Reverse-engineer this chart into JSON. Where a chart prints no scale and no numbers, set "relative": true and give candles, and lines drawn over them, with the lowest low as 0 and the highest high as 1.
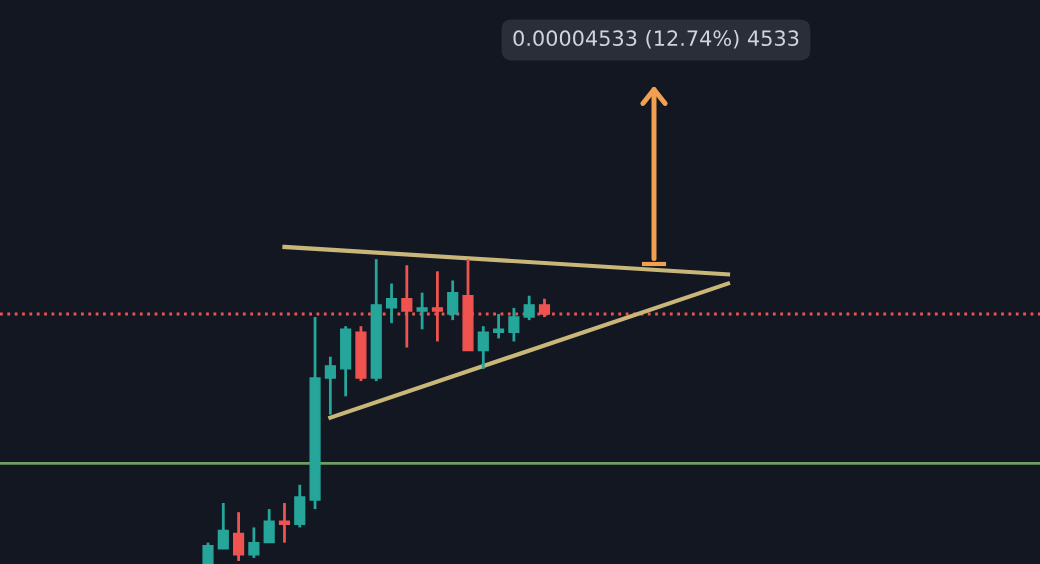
{
  "chart_data": {
    "type": "candlestick",
    "relative": true,
    "categories": [
      null,
      null,
      null,
      null,
      null,
      null,
      null,
      null,
      null,
      null,
      null,
      null,
      null,
      null,
      null,
      null,
      null,
      null,
      null,
      null,
      null,
      null,
      null,
      null,
      null,
      null,
      null,
      null,
      null,
      null,
      null,
      null,
      null,
      null,
      null
    ],
    "ohlc": [
      [
        0,
        0.07,
        0,
        0.06
      ],
      [
        0.05,
        0.2,
        0.05,
        0.11
      ],
      [
        0.1,
        0.17,
        0.01,
        0.03
      ],
      [
        0.03,
        0.12,
        0.02,
        0.07
      ],
      [
        0.07,
        0.18,
        0.07,
        0.14
      ],
      [
        0.14,
        0.2,
        0.07,
        0.13
      ],
      [
        0.13,
        0.26,
        0.12,
        0.22
      ],
      [
        0.21,
        0.81,
        0.18,
        0.61
      ],
      [
        0.61,
        0.68,
        0.49,
        0.65
      ],
      [
        0.64,
        0.78,
        0.55,
        0.77
      ],
      [
        0.76,
        0.78,
        0.6,
        0.61
      ],
      [
        0.61,
        1.0,
        0.6,
        0.85
      ],
      [
        0.84,
        0.92,
        0.79,
        0.87
      ],
      [
        0.87,
        0.98,
        0.71,
        0.83
      ],
      [
        0.83,
        0.89,
        0.77,
        0.84
      ],
      [
        0.84,
        0.96,
        0.73,
        0.83
      ],
      [
        0.82,
        0.93,
        0.8,
        0.89
      ],
      [
        0.88,
        1.0,
        0.7,
        0.7
      ],
      [
        0.7,
        0.78,
        0.64,
        0.76
      ],
      [
        0.76,
        0.82,
        0.74,
        0.77
      ],
      [
        0.76,
        0.84,
        0.73,
        0.81
      ],
      [
        0.81,
        0.88,
        0.8,
        0.85
      ],
      [
        0.85,
        0.87,
        0.81,
        0.82
      ],
      null,
      null,
      null,
      null,
      null,
      null,
      null,
      null,
      null,
      null,
      null,
      null
    ],
    "colors": [
      "#26a69a",
      "#26a69a",
      "#ef5350",
      "#26a69a",
      "#26a69a",
      "#ef5350",
      "#26a69a",
      "#26a69a",
      "#26a69a",
      "#26a69a",
      "#ef5350",
      "#26a69a",
      "#26a69a",
      "#ef5350",
      "#26a69a",
      "#ef5350",
      "#26a69a",
      "#ef5350",
      "#26a69a",
      "#26a69a",
      "#26a69a",
      "#26a69a",
      "#ef5350",
      null,
      null,
      null,
      null,
      null,
      null,
      null,
      null,
      null,
      null,
      null,
      null
    ],
    "series": [
      {
        "type": "line",
        "color": "#c9b77a",
        "values": [
          null,
          null,
          null,
          null,
          null,
          1.04,
          null,
          null,
          null,
          null,
          null,
          null,
          null,
          null,
          null,
          null,
          null,
          null,
          null,
          null,
          null,
          null,
          null,
          null,
          null,
          null,
          null,
          null,
          null,
          null,
          null,
          null,
          null,
          null,
          0.95
        ]
      },
      {
        "type": "line",
        "color": "#c9b77a",
        "values": [
          null,
          null,
          null,
          null,
          null,
          null,
          null,
          null,
          0.48,
          null,
          null,
          null,
          null,
          null,
          null,
          null,
          null,
          null,
          null,
          null,
          null,
          null,
          null,
          null,
          null,
          null,
          null,
          null,
          null,
          null,
          null,
          null,
          null,
          null,
          0.92
        ]
      }
    ],
    "ref_lines": [
      {
        "axis": "y",
        "value": 0.33,
        "color": "#6f9e62",
        "line_style": "solid"
      },
      {
        "axis": "y",
        "value": 0.82,
        "color": "#ef5350",
        "line_style": "dotted"
      }
    ],
    "annotations": [
      "0.00004533 (12.74%) 4533"
    ]
  }
}
